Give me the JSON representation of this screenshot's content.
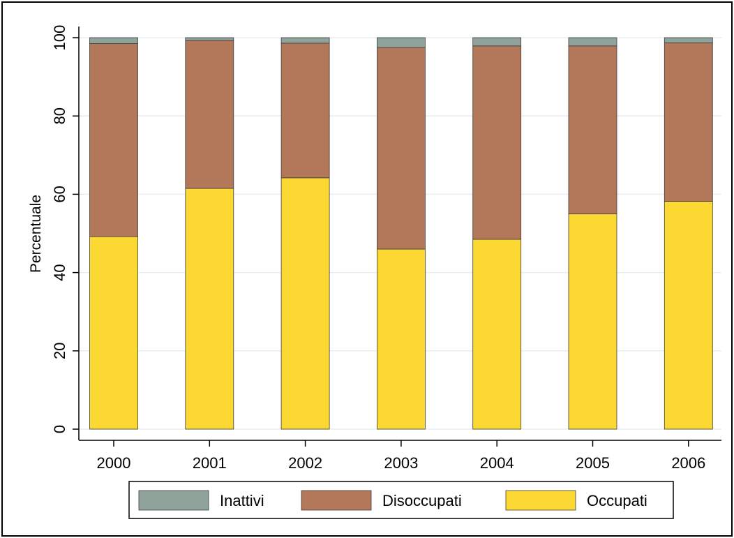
{
  "chart_data": {
    "type": "bar",
    "stacked": true,
    "categories": [
      "2000",
      "2001",
      "2002",
      "2003",
      "2004",
      "2005",
      "2006"
    ],
    "series": [
      {
        "name": "Occupati",
        "color": "#fcd932",
        "values": [
          49.2,
          61.5,
          64.2,
          46.0,
          48.5,
          55.0,
          58.2
        ]
      },
      {
        "name": "Disoccupati",
        "color": "#b3775a",
        "values": [
          49.3,
          37.8,
          34.4,
          51.5,
          49.4,
          42.9,
          40.5
        ]
      },
      {
        "name": "Inattivi",
        "color": "#8fa39a",
        "values": [
          1.5,
          0.7,
          1.4,
          2.5,
          2.1,
          2.1,
          1.3
        ]
      }
    ],
    "legend_order": [
      "Inattivi",
      "Disoccupati",
      "Occupati"
    ],
    "ylabel": "Percentuale",
    "xlabel": "",
    "ylim": [
      0,
      100
    ],
    "yticks": [
      0,
      20,
      40,
      60,
      80,
      100
    ],
    "grid": true,
    "legend_position": "bottom"
  }
}
